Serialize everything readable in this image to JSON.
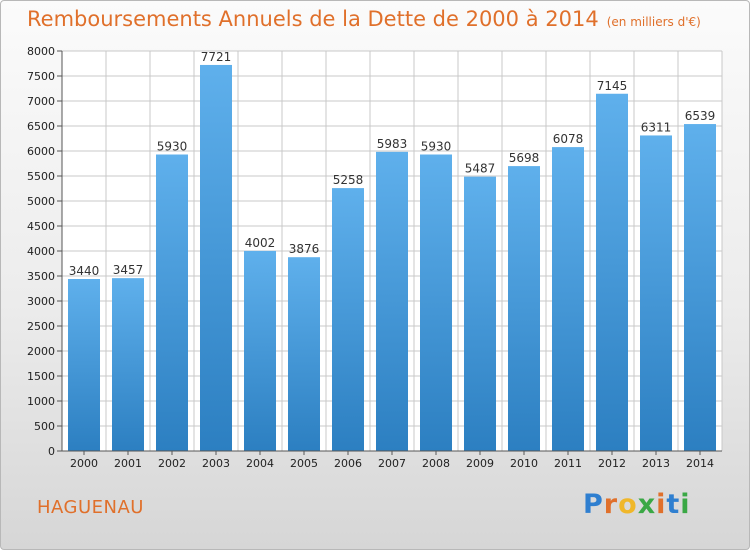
{
  "title": "Remboursements Annuels de la Dette de 2000 à 2014",
  "unit": "(en milliers d'€)",
  "commune": "HAGUENAU",
  "logo": "Proxiti",
  "colors": {
    "title": "#e0702b",
    "bar_top": "#5fb0ec",
    "bar_bottom": "#2c7fc1",
    "grid": "#c8c8c8"
  },
  "chart_data": {
    "type": "bar",
    "categories": [
      "2000",
      "2001",
      "2002",
      "2003",
      "2004",
      "2005",
      "2006",
      "2007",
      "2008",
      "2009",
      "2010",
      "2011",
      "2012",
      "2013",
      "2014"
    ],
    "values": [
      3440,
      3457,
      5930,
      7721,
      4002,
      3876,
      5258,
      5983,
      5930,
      5487,
      5698,
      6078,
      7145,
      6311,
      6539
    ],
    "ylim": [
      0,
      8000
    ],
    "yticks": [
      0,
      500,
      1000,
      1500,
      2000,
      2500,
      3000,
      3500,
      4000,
      4500,
      5000,
      5500,
      6000,
      6500,
      7000,
      7500,
      8000
    ],
    "grid": true,
    "legend": "none"
  }
}
